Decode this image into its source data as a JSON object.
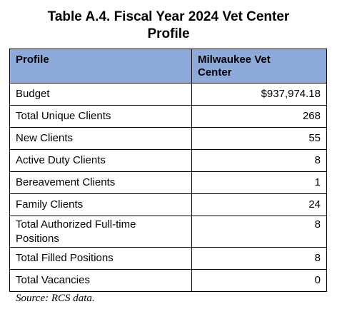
{
  "title_line1": "Table A.4. Fiscal Year 2024 Vet Center",
  "title_line2": "Profile",
  "header": {
    "col1": "Profile",
    "col2_line1": "Milwaukee Vet",
    "col2_line2": "Center"
  },
  "rows": [
    {
      "label": "Budget",
      "value": "$937,974.18"
    },
    {
      "label": "Total Unique Clients",
      "value": "268"
    },
    {
      "label": "New Clients",
      "value": "55"
    },
    {
      "label": "Active Duty Clients",
      "value": "8"
    },
    {
      "label": "Bereavement Clients",
      "value": "1"
    },
    {
      "label": "Family Clients",
      "value": "24"
    },
    {
      "label_line1": "Total Authorized Full-time",
      "label_line2": "Positions",
      "value": "8"
    },
    {
      "label": "Total Filled Positions",
      "value": "8"
    },
    {
      "label": "Total Vacancies",
      "value": "0"
    }
  ],
  "source": "Source: RCS data."
}
